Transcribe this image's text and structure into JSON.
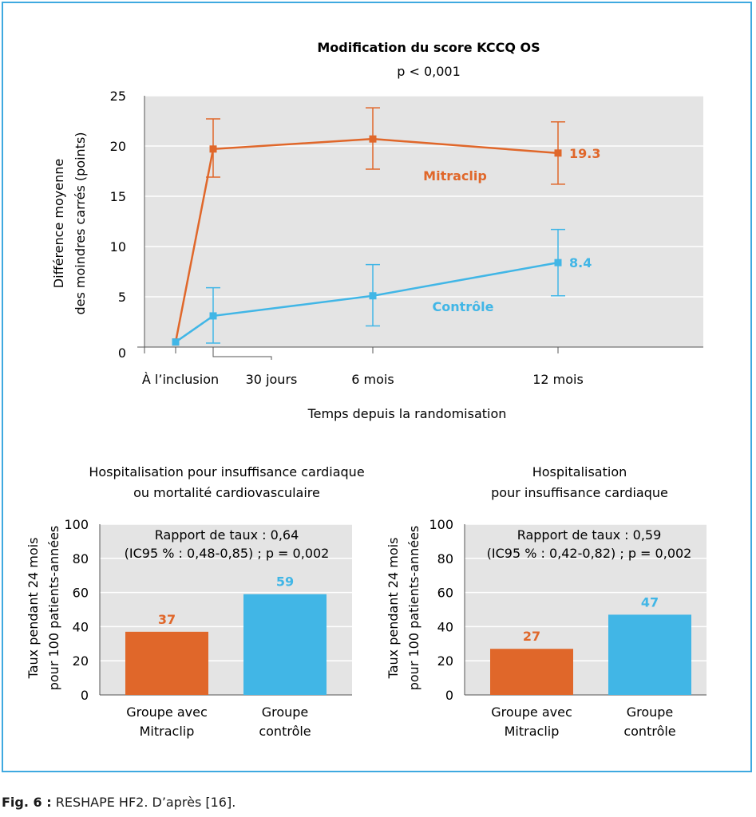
{
  "colors": {
    "mitraclip": "#e0672a",
    "controle": "#41b6e6",
    "plot_bg": "#e4e4e4",
    "frame": "#3fa9e0",
    "gridline": "#ffffff"
  },
  "caption": {
    "label": "Fig. 6 :",
    "text": "RESHAPE HF2. D’après [16]."
  },
  "chart_data": [
    {
      "type": "line",
      "title": "Modification du score KCCQ OS",
      "subtitle": "p < 0,001",
      "xlabel": "Temps depuis la randomisation",
      "ylabel": [
        "Différence moyenne",
        "des moindres carrés (points)"
      ],
      "ylim": [
        0,
        25
      ],
      "yticks": [
        0,
        5,
        10,
        15,
        20,
        25
      ],
      "grid": true,
      "x_ticks": [
        "À l’inclusion",
        "30 jours",
        "6 mois",
        "12 mois"
      ],
      "series": [
        {
          "name": "Mitraclip",
          "color": "#e0672a",
          "points": [
            {
              "x": "À l’inclusion",
              "y": 0.5
            },
            {
              "x": "30 jours",
              "y": 19.7,
              "err_low": 16.9,
              "err_high": 22.7
            },
            {
              "x": "6 mois",
              "y": 20.7,
              "err_low": 17.7,
              "err_high": 23.8
            },
            {
              "x": "12 mois",
              "y": 19.3,
              "err_low": 16.2,
              "err_high": 22.4
            }
          ],
          "end_label": "19.3"
        },
        {
          "name": "Contrôle",
          "color": "#41b6e6",
          "points": [
            {
              "x": "À l’inclusion",
              "y": 0.5
            },
            {
              "x": "30 jours",
              "y": 3.1,
              "err_low": 0.4,
              "err_high": 5.9
            },
            {
              "x": "6 mois",
              "y": 5.1,
              "err_low": 2.1,
              "err_high": 8.2
            },
            {
              "x": "12 mois",
              "y": 8.4,
              "err_low": 5.1,
              "err_high": 11.7
            }
          ],
          "end_label": "8.4"
        }
      ]
    },
    {
      "type": "bar",
      "title": [
        "Hospitalisation pour insuffisance cardiaque",
        "ou mortalité cardiovasculaire"
      ],
      "ylabel": [
        "Taux pendant 24 mois",
        "pour 100 patients-années"
      ],
      "ylim": [
        0,
        100
      ],
      "yticks": [
        0,
        20,
        40,
        60,
        80,
        100
      ],
      "grid": true,
      "annotation": [
        "Rapport de taux : 0,64",
        "(IC95 % : 0,48-0,85) ; p = 0,002"
      ],
      "categories": [
        [
          "Groupe avec",
          "Mitraclip"
        ],
        [
          "Groupe",
          "contrôle"
        ]
      ],
      "values": [
        37,
        59
      ],
      "colors": [
        "#e0672a",
        "#41b6e6"
      ]
    },
    {
      "type": "bar",
      "title": [
        "Hospitalisation",
        "pour insuffisance cardiaque"
      ],
      "ylabel": [
        "Taux pendant 24 mois",
        "pour 100 patients-années"
      ],
      "ylim": [
        0,
        100
      ],
      "yticks": [
        0,
        20,
        40,
        60,
        80,
        100
      ],
      "grid": true,
      "annotation": [
        "Rapport de taux : 0,59",
        "(IC95 % : 0,42-0,82) ; p = 0,002"
      ],
      "categories": [
        [
          "Groupe avec",
          "Mitraclip"
        ],
        [
          "Groupe",
          "contrôle"
        ]
      ],
      "values": [
        27,
        47
      ],
      "colors": [
        "#e0672a",
        "#41b6e6"
      ]
    }
  ]
}
